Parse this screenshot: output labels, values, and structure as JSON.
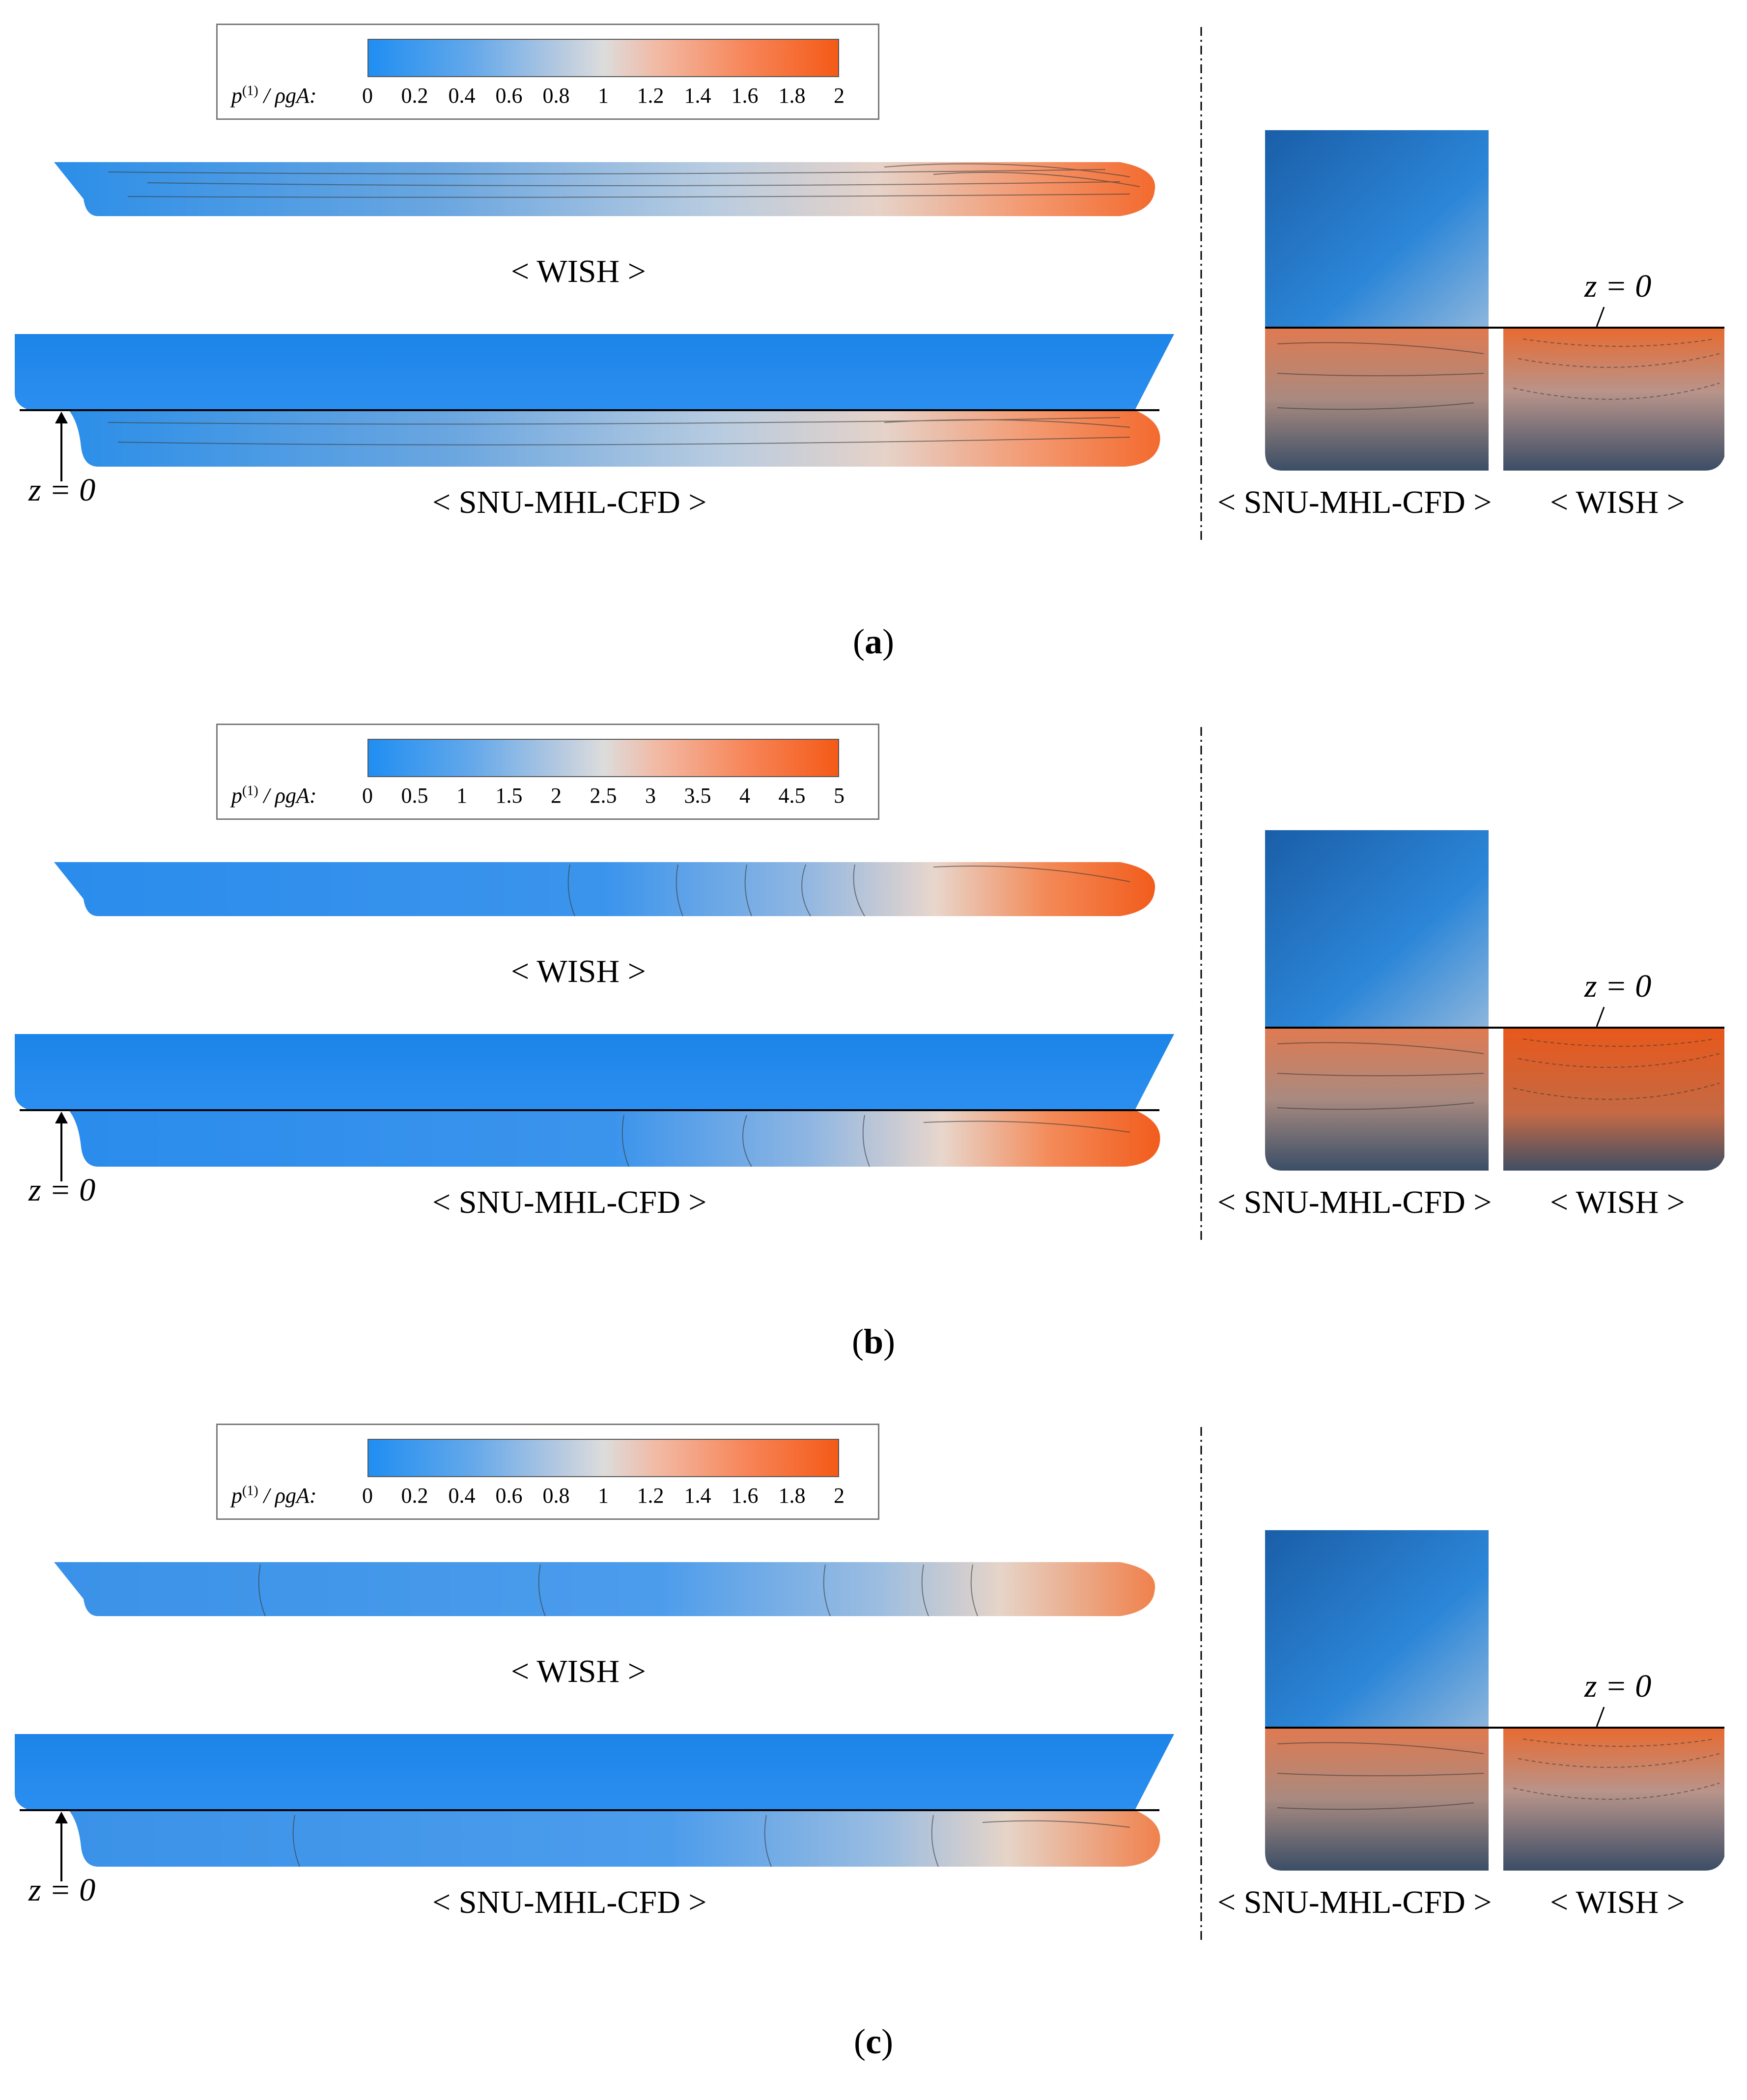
{
  "colorbar_label": {
    "main": "p",
    "sup": "(1)",
    "rest": " / ρgA:"
  },
  "colors": {
    "low": "#1f8ef2",
    "mid": "#dcdcdc",
    "high": "#f45a17"
  },
  "panels": [
    {
      "id": "a",
      "caption_open": "(",
      "caption_letter": "a",
      "caption_close": ")",
      "ticks": [
        "0",
        "0.2",
        "0.4",
        "0.6",
        "0.8",
        "1",
        "1.2",
        "1.4",
        "1.6",
        "1.8",
        "2"
      ],
      "label_wish_side": "< WISH >",
      "label_cfd_side": "< SNU-MHL-CFD >",
      "label_cfd_front": "< SNU-MHL-CFD >",
      "label_wish_front": "< WISH >",
      "z_label_side": "z = 0",
      "z_label_front": "z = 0"
    },
    {
      "id": "b",
      "caption_open": "(",
      "caption_letter": "b",
      "caption_close": ")",
      "ticks": [
        "0",
        "0.5",
        "1",
        "1.5",
        "2",
        "2.5",
        "3",
        "3.5",
        "4",
        "4.5",
        "5"
      ],
      "label_wish_side": "< WISH >",
      "label_cfd_side": "< SNU-MHL-CFD >",
      "label_cfd_front": "< SNU-MHL-CFD >",
      "label_wish_front": "< WISH >",
      "z_label_side": "z = 0",
      "z_label_front": "z = 0"
    },
    {
      "id": "c",
      "caption_open": "(",
      "caption_letter": "c",
      "caption_close": ")",
      "ticks": [
        "0",
        "0.2",
        "0.4",
        "0.6",
        "0.8",
        "1",
        "1.2",
        "1.4",
        "1.6",
        "1.8",
        "2"
      ],
      "label_wish_side": "< WISH >",
      "label_cfd_side": "< SNU-MHL-CFD >",
      "label_cfd_front": "< SNU-MHL-CFD >",
      "label_wish_front": "< WISH >",
      "z_label_side": "z = 0",
      "z_label_front": "z = 0"
    }
  ]
}
